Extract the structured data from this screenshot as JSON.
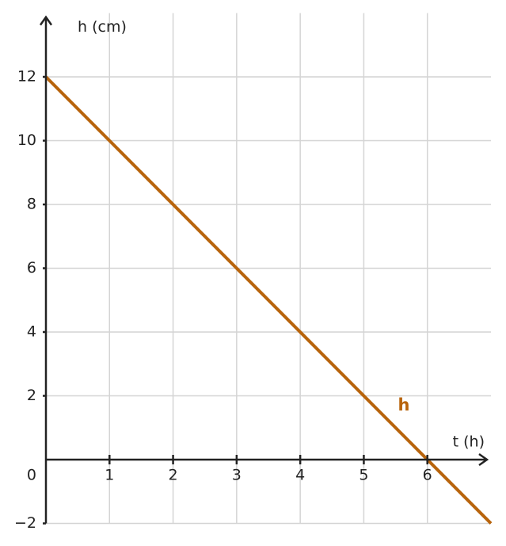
{
  "chart_data": {
    "type": "line",
    "x_label": "t (h)",
    "y_label": "h (cm)",
    "x": [
      0,
      7
    ],
    "series": [
      {
        "name": "h",
        "color": "#b8640c",
        "values": [
          12,
          -2
        ]
      }
    ],
    "xlim": [
      0,
      7
    ],
    "ylim": [
      -2,
      14
    ],
    "xticks": [
      1,
      2,
      3,
      4,
      5,
      6
    ],
    "yticks": [
      {
        "value": -2,
        "label": "−2"
      },
      0,
      2,
      4,
      6,
      8,
      10,
      12
    ],
    "grid": true
  }
}
